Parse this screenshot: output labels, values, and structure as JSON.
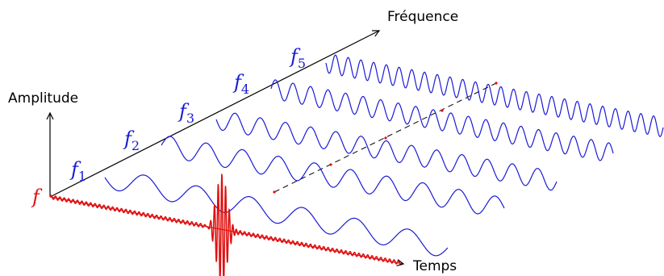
{
  "labels": {
    "frequency_axis": "Fréquence",
    "amplitude_axis": "Amplitude",
    "time_axis": "Temps",
    "signal": "f"
  },
  "components": [
    {
      "symbol": "f",
      "index": "1"
    },
    {
      "symbol": "f",
      "index": "2"
    },
    {
      "symbol": "f",
      "index": "3"
    },
    {
      "symbol": "f",
      "index": "4"
    },
    {
      "symbol": "f",
      "index": "5"
    }
  ],
  "colors": {
    "axes": "#000000",
    "components": "#1a1ad6",
    "signal": "#e01010",
    "sum_line": "#000000"
  }
}
